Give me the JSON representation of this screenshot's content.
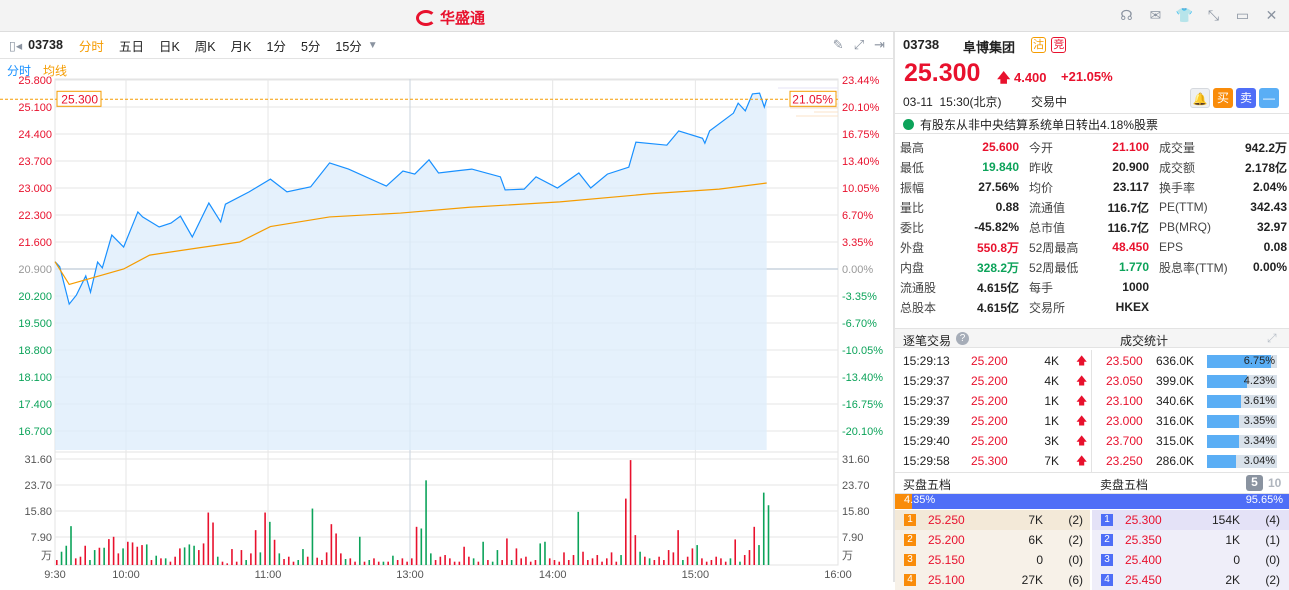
{
  "app": {
    "title": "华盛通",
    "window_icons": [
      "headset-icon",
      "mail-icon",
      "shirt-icon",
      "shrink-icon",
      "minimize-icon",
      "close-icon"
    ]
  },
  "toolbar": {
    "code": "03738",
    "tabs": [
      "分时",
      "五日",
      "日K",
      "周K",
      "月K",
      "1分",
      "5分",
      "15分"
    ],
    "active_tab": "分时"
  },
  "legend": {
    "line": "分时",
    "avg": "均线"
  },
  "colors": {
    "up": "#e8112d",
    "down": "#0ca35a",
    "line": "#1890ff",
    "avg": "#f59c00"
  },
  "chart_data": {
    "type": "line",
    "prev_close": 20.9,
    "current_price_label": "25.300",
    "current_pct_label": "21.05%",
    "price_ticks": [
      "25.800",
      "25.100",
      "24.400",
      "23.700",
      "23.000",
      "22.300",
      "21.600",
      "20.900",
      "20.200",
      "19.500",
      "18.800",
      "18.100",
      "17.400",
      "16.700"
    ],
    "pct_ticks": [
      "23.44%",
      "20.10%",
      "16.75%",
      "13.40%",
      "10.05%",
      "6.70%",
      "3.35%",
      "0.00%",
      "-3.35%",
      "-6.70%",
      "-10.05%",
      "-13.40%",
      "-16.75%",
      "-20.10%"
    ],
    "x_ticks": [
      "9:30",
      "10:00",
      "11:00",
      "13:00",
      "14:00",
      "15:00",
      "16:00"
    ],
    "vol_ticks": [
      "31.60",
      "23.70",
      "15.80",
      "7.90"
    ],
    "vol_unit": "万",
    "price": [
      [
        "9:30",
        21.09
      ],
      [
        "9:32",
        20.96
      ],
      [
        "9:36",
        19.99
      ],
      [
        "9:39",
        20.22
      ],
      [
        "9:43",
        20.72
      ],
      [
        "9:45",
        20.3
      ],
      [
        "9:48",
        21.08
      ],
      [
        "9:50",
        20.93
      ],
      [
        "9:54",
        21.78
      ],
      [
        "9:59",
        21.47
      ],
      [
        "10:05",
        22.38
      ],
      [
        "10:07",
        22.25
      ],
      [
        "10:14",
        21.99
      ],
      [
        "10:19",
        22.09
      ],
      [
        "10:23",
        22.27
      ],
      [
        "10:28",
        21.73
      ],
      [
        "10:35",
        22.61
      ],
      [
        "10:40",
        22.12
      ],
      [
        "10:42",
        22.58
      ],
      [
        "10:52",
        22.9
      ],
      [
        "11:01",
        23.23
      ],
      [
        "11:08",
        22.9
      ],
      [
        "11:18",
        23.03
      ],
      [
        "11:26",
        23.65
      ],
      [
        "11:34",
        23.49
      ],
      [
        "11:50",
        23.05
      ],
      [
        "11:57",
        23.44
      ],
      [
        "13:02",
        23.36
      ],
      [
        "13:08",
        23.73
      ],
      [
        "13:12",
        23.39
      ],
      [
        "13:19",
        23.44
      ],
      [
        "13:26",
        23.49
      ],
      [
        "13:38",
        23.29
      ],
      [
        "13:40",
        22.95
      ],
      [
        "13:48",
        22.97
      ],
      [
        "13:53",
        23.29
      ],
      [
        "14:02",
        23.0
      ],
      [
        "14:11",
        23.39
      ],
      [
        "14:16",
        23.0
      ],
      [
        "14:23",
        23.36
      ],
      [
        "14:32",
        23.54
      ],
      [
        "14:35",
        24.19
      ],
      [
        "14:48",
        24.11
      ],
      [
        "14:53",
        24.48
      ],
      [
        "15:03",
        24.29
      ],
      [
        "15:04",
        24.16
      ],
      [
        "15:06",
        24.48
      ],
      [
        "15:16",
        24.94
      ],
      [
        "15:18",
        25.2
      ],
      [
        "15:21",
        25.0
      ],
      [
        "15:24",
        25.44
      ],
      [
        "15:27",
        25.46
      ],
      [
        "15:29",
        25.1
      ],
      [
        "15:30",
        25.3
      ]
    ],
    "avg": [
      [
        "9:30",
        21.09
      ],
      [
        "9:36",
        20.5
      ],
      [
        "9:59",
        20.9
      ],
      [
        "10:10",
        21.26
      ],
      [
        "10:31",
        21.45
      ],
      [
        "10:48",
        21.6
      ],
      [
        "11:01",
        22.0
      ],
      [
        "11:26",
        22.25
      ],
      [
        "11:56",
        22.35
      ],
      [
        "13:25",
        22.5
      ],
      [
        "14:03",
        22.64
      ],
      [
        "14:41",
        22.85
      ],
      [
        "15:10",
        22.97
      ],
      [
        "15:30",
        23.13
      ]
    ],
    "volume_morning": [
      1.5,
      -4,
      -5.8,
      -11.7,
      2,
      2.5,
      5.8,
      -1.5,
      -4.5,
      5.2,
      -5.2,
      7.8,
      8.5,
      3.5,
      -5,
      7,
      6.8,
      5.5,
      6,
      -6.2,
      1.5,
      -2.8,
      2,
      -2,
      1,
      2.5,
      5,
      -5.3,
      -6.2,
      -5.8,
      4.5,
      6.5,
      15.8,
      12.8,
      -2.5,
      1,
      0.5,
      4.8,
      1,
      4.5,
      -1.5,
      3.5,
      10.5,
      -3.8,
      15.8,
      -13,
      7.6,
      -3.5,
      1.8,
      2.5,
      1,
      -1.5,
      -4.8,
      2.5,
      -17,
      2.2,
      1.5,
      3.8,
      12.3,
      9.5,
      3.5,
      -1.8,
      2,
      1,
      -8.5,
      1,
      -1.5,
      2,
      1,
      -1,
      1,
      -2.8,
      1.5,
      2,
      1
    ],
    "volume_afternoon": [
      2,
      11.5,
      -11,
      -25.5,
      -3.5,
      1.5,
      2.5,
      3,
      2,
      1,
      1,
      5.5,
      2.5,
      -2,
      1,
      -7,
      1.5,
      -1,
      -4.5,
      1.5,
      8,
      -1.5,
      5,
      2,
      2.5,
      1,
      1.5,
      -6.5,
      -7,
      2,
      1.5,
      1,
      3.8,
      1.5,
      3,
      -16,
      4,
      1.5,
      2,
      3,
      1,
      2,
      3.8,
      1,
      -3,
      20,
      31.6,
      9,
      -4,
      2.5,
      -2,
      1.5,
      2.5,
      1.5,
      4.5,
      3.8,
      10.5,
      -1.5,
      2.5,
      5,
      -6,
      2,
      1,
      1.5,
      2.5,
      2,
      1,
      -2,
      7.7,
      -1,
      3,
      4.5,
      11.5,
      -6,
      -21.8,
      -18
    ]
  },
  "quote": {
    "code": "03738",
    "name": "阜博集团",
    "badges": [
      "沽",
      "竞"
    ],
    "price": "25.300",
    "change": "4.400",
    "change_pct": "+21.05%",
    "datetime": "03-11  15:30(北京)",
    "status": "交易中",
    "buttons": [
      "买",
      "卖"
    ],
    "notice": "有股东从非中央结算系统单日转出4.18%股票"
  },
  "stats": [
    [
      {
        "l": "最高",
        "v": "25.600",
        "c": "red"
      },
      {
        "l": "今开",
        "v": "21.100",
        "c": "red"
      },
      {
        "l": "成交量",
        "v": "942.2万"
      }
    ],
    [
      {
        "l": "最低",
        "v": "19.840",
        "c": "green"
      },
      {
        "l": "昨收",
        "v": "20.900"
      },
      {
        "l": "成交额",
        "v": "2.178亿"
      }
    ],
    [
      {
        "l": "振幅",
        "v": "27.56%"
      },
      {
        "l": "均价",
        "v": "23.117"
      },
      {
        "l": "换手率",
        "v": "2.04%"
      }
    ],
    [
      {
        "l": "量比",
        "v": "0.88"
      },
      {
        "l": "流通值",
        "v": "116.7亿"
      },
      {
        "l": "PE(TTM)",
        "v": "342.43"
      }
    ],
    [
      {
        "l": "委比",
        "v": "-45.82%"
      },
      {
        "l": "总市值",
        "v": "116.7亿"
      },
      {
        "l": "PB(MRQ)",
        "v": "32.97"
      }
    ],
    [
      {
        "l": "外盘",
        "v": "550.8万",
        "c": "red"
      },
      {
        "l": "52周最高",
        "v": "48.450",
        "c": "red"
      },
      {
        "l": "EPS",
        "v": "0.08"
      }
    ],
    [
      {
        "l": "内盘",
        "v": "328.2万",
        "c": "green"
      },
      {
        "l": "52周最低",
        "v": "1.770",
        "c": "green"
      },
      {
        "l": "股息率(TTM)",
        "v": "0.00%"
      }
    ],
    [
      {
        "l": "流通股",
        "v": "4.615亿"
      },
      {
        "l": "每手",
        "v": "1000"
      },
      {
        "l": "",
        "v": ""
      }
    ],
    [
      {
        "l": "总股本",
        "v": "4.615亿"
      },
      {
        "l": "交易所",
        "v": "HKEX"
      },
      {
        "l": "",
        "v": ""
      }
    ]
  ],
  "trades": {
    "title": "逐笔交易",
    "stats_title": "成交统计",
    "rows": [
      {
        "time": "15:29:13",
        "price": "25.200",
        "vol": "4K"
      },
      {
        "time": "15:29:37",
        "price": "25.200",
        "vol": "4K"
      },
      {
        "time": "15:29:37",
        "price": "25.200",
        "vol": "1K"
      },
      {
        "time": "15:29:39",
        "price": "25.200",
        "vol": "1K"
      },
      {
        "time": "15:29:40",
        "price": "25.200",
        "vol": "3K"
      },
      {
        "time": "15:29:58",
        "price": "25.300",
        "vol": "7K"
      }
    ],
    "stat_rows": [
      {
        "price": "23.500",
        "vol": "636.0K",
        "pct": "6.75%",
        "v": 6.75
      },
      {
        "price": "23.050",
        "vol": "399.0K",
        "pct": "4.23%",
        "v": 4.23
      },
      {
        "price": "23.100",
        "vol": "340.6K",
        "pct": "3.61%",
        "v": 3.61
      },
      {
        "price": "23.000",
        "vol": "316.0K",
        "pct": "3.35%",
        "v": 3.35
      },
      {
        "price": "23.700",
        "vol": "315.0K",
        "pct": "3.34%",
        "v": 3.34
      },
      {
        "price": "23.250",
        "vol": "286.0K",
        "pct": "3.04%",
        "v": 3.04
      }
    ]
  },
  "orderbook": {
    "buy_title": "买盘五档",
    "sell_title": "卖盘五档",
    "depth_options": [
      "5",
      "10"
    ],
    "buy_pct": "4.35%",
    "sell_pct": "95.65%",
    "buy_ratio": 4.35,
    "buy": [
      {
        "n": "1",
        "p": "25.250",
        "v": "7K",
        "c": "(2)"
      },
      {
        "n": "2",
        "p": "25.200",
        "v": "6K",
        "c": "(2)"
      },
      {
        "n": "3",
        "p": "25.150",
        "v": "0",
        "c": "(0)"
      },
      {
        "n": "4",
        "p": "25.100",
        "v": "27K",
        "c": "(6)"
      }
    ],
    "sell": [
      {
        "n": "1",
        "p": "25.300",
        "v": "154K",
        "c": "(4)"
      },
      {
        "n": "2",
        "p": "25.350",
        "v": "1K",
        "c": "(1)"
      },
      {
        "n": "3",
        "p": "25.400",
        "v": "0",
        "c": "(0)"
      },
      {
        "n": "4",
        "p": "25.450",
        "v": "2K",
        "c": "(2)"
      }
    ]
  }
}
